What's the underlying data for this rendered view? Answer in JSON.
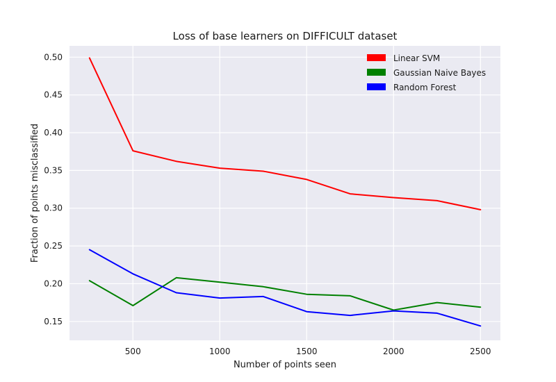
{
  "chart_data": {
    "type": "line",
    "title": "Loss of base learners on DIFFICULT dataset",
    "xlabel": "Number of points seen",
    "ylabel": "Fraction of points misclassified",
    "x": [
      250,
      500,
      750,
      1000,
      1250,
      1500,
      1750,
      2000,
      2250,
      2500
    ],
    "xlim": [
      135,
      2615
    ],
    "ylim": [
      0.125,
      0.515
    ],
    "xticks": [
      500,
      1000,
      1500,
      2000,
      2500
    ],
    "yticks": [
      0.15,
      0.2,
      0.25,
      0.3,
      0.35,
      0.4,
      0.45,
      0.5
    ],
    "xtick_labels": [
      "500",
      "1000",
      "1500",
      "2000",
      "2500"
    ],
    "ytick_labels": [
      "0.15",
      "0.20",
      "0.25",
      "0.30",
      "0.35",
      "0.40",
      "0.45",
      "0.50"
    ],
    "grid": true,
    "legend_position": "top-right",
    "background": "#eaeaf2",
    "series": [
      {
        "name": "Linear SVM",
        "color": "#ff0000",
        "values": [
          0.499,
          0.376,
          0.362,
          0.353,
          0.349,
          0.338,
          0.319,
          0.314,
          0.31,
          0.298
        ]
      },
      {
        "name": "Gaussian Naive Bayes",
        "color": "#008000",
        "values": [
          0.204,
          0.171,
          0.208,
          0.202,
          0.196,
          0.186,
          0.184,
          0.165,
          0.175,
          0.169
        ]
      },
      {
        "name": "Random Forest",
        "color": "#0000ff",
        "values": [
          0.245,
          0.213,
          0.188,
          0.181,
          0.183,
          0.163,
          0.158,
          0.164,
          0.161,
          0.144
        ]
      }
    ]
  }
}
